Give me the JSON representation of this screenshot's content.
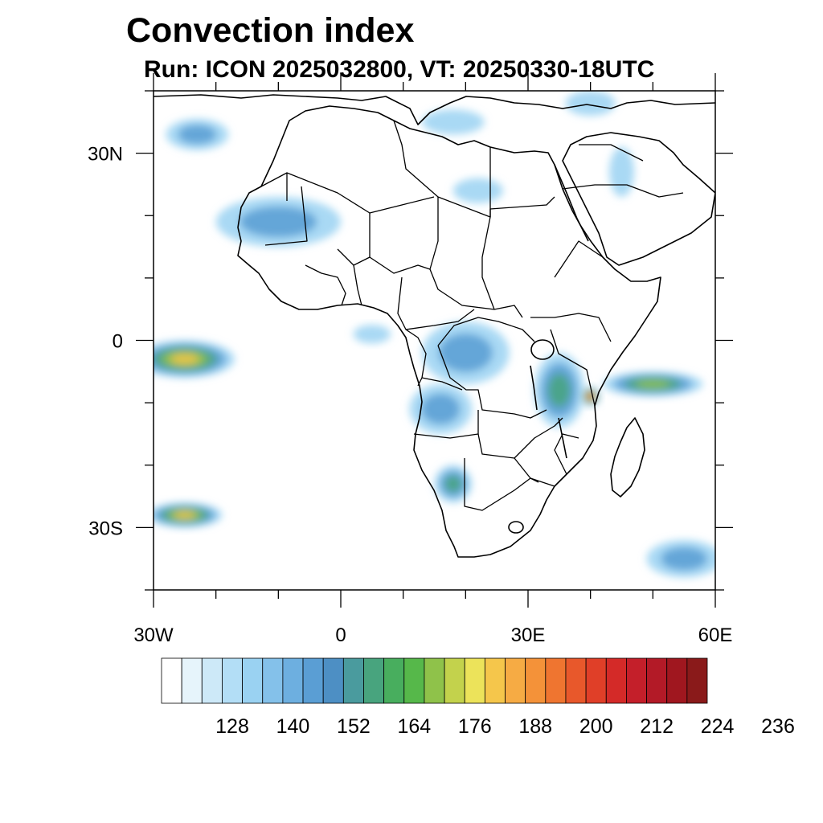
{
  "header": {
    "title": "Convection index",
    "subtitle": "Run: ICON 2025032800,  VT: 20250330-18UTC"
  },
  "map": {
    "extent": {
      "lon_min": -30,
      "lon_max": 60,
      "lat_min": -40,
      "lat_max": 40
    },
    "x_ticks": [
      {
        "lon": -30,
        "label": "30W"
      },
      {
        "lon": 0,
        "label": "0"
      },
      {
        "lon": 30,
        "label": "30E"
      },
      {
        "lon": 60,
        "label": "60E"
      }
    ],
    "y_ticks": [
      {
        "lat": 30,
        "label": "30N"
      },
      {
        "lat": 0,
        "label": "0"
      },
      {
        "lat": -30,
        "label": "30S"
      }
    ],
    "minor_tick_step_deg": 10,
    "convection_areas": [
      {
        "region": "North Atlantic cyclone west of Morocco",
        "lon": -23,
        "lat": 33,
        "rlon": 5,
        "rlat": 2.5,
        "value": 146
      },
      {
        "region": "Western Sahara / Mauritania band",
        "lon": -10,
        "lat": 19,
        "rlon": 10,
        "rlat": 4,
        "value": 150
      },
      {
        "region": "Mediterranean",
        "lon": 18,
        "lat": 35,
        "rlon": 5,
        "rlat": 2,
        "value": 140
      },
      {
        "region": "Libya / Egypt",
        "lon": 22,
        "lat": 24,
        "rlon": 4,
        "rlat": 2,
        "value": 136
      },
      {
        "region": "Saudi Arabia",
        "lon": 45,
        "lat": 27,
        "rlon": 2,
        "rlat": 4,
        "value": 140
      },
      {
        "region": "Turkey",
        "lon": 40,
        "lat": 38,
        "rlon": 4,
        "rlat": 2,
        "value": 140
      },
      {
        "region": "Equatorial Atlantic",
        "lon": -25,
        "lat": -3,
        "rlon": 8,
        "rlat": 3,
        "value": 180
      },
      {
        "region": "Gulf of Guinea",
        "lon": 5,
        "lat": 1,
        "rlon": 3,
        "rlat": 1.5,
        "value": 136
      },
      {
        "region": "Congo basin",
        "lon": 20,
        "lat": -2,
        "rlon": 7,
        "rlat": 5,
        "value": 144
      },
      {
        "region": "Angola",
        "lon": 16,
        "lat": -11,
        "rlon": 5,
        "rlat": 4,
        "value": 146
      },
      {
        "region": "Tanzania / Mozambique",
        "lon": 35,
        "lat": -8,
        "rlon": 4,
        "rlat": 6,
        "value": 160
      },
      {
        "region": "Tanzania coast",
        "lon": 40,
        "lat": -9,
        "rlon": 1.5,
        "rlat": 1.5,
        "value": 204
      },
      {
        "region": "Western Indian Ocean",
        "lon": 50,
        "lat": -7,
        "rlon": 8,
        "rlat": 2,
        "value": 170
      },
      {
        "region": "Namibia",
        "lon": 18,
        "lat": -23,
        "rlon": 3,
        "rlat": 3,
        "value": 158
      },
      {
        "region": "South Atlantic trough",
        "lon": -25,
        "lat": -28,
        "rlon": 6,
        "rlat": 2,
        "value": 182
      },
      {
        "region": "South Indian Ocean",
        "lon": 55,
        "lat": -35,
        "rlon": 6,
        "rlat": 3,
        "value": 146
      }
    ]
  },
  "colorbar": {
    "colors": [
      "#ffffff",
      "#e6f4fb",
      "#cde9f8",
      "#b3def6",
      "#9ad2f2",
      "#84c1ea",
      "#6dafe0",
      "#5a9ed4",
      "#4d8fc4",
      "#4a9b9e",
      "#48a47e",
      "#48ae5e",
      "#56b84a",
      "#8fc24a",
      "#c3d24c",
      "#ece35a",
      "#f5c64b",
      "#f6ab44",
      "#f49239",
      "#ef7530",
      "#e8582b",
      "#e03f28",
      "#d42a28",
      "#c41f2a",
      "#b31a27",
      "#a0171f",
      "#8a1a1a"
    ],
    "tick_labels": [
      "128",
      "140",
      "152",
      "164",
      "176",
      "188",
      "200",
      "212",
      "224",
      "236"
    ],
    "label_every": 3,
    "label_offset": 2
  }
}
